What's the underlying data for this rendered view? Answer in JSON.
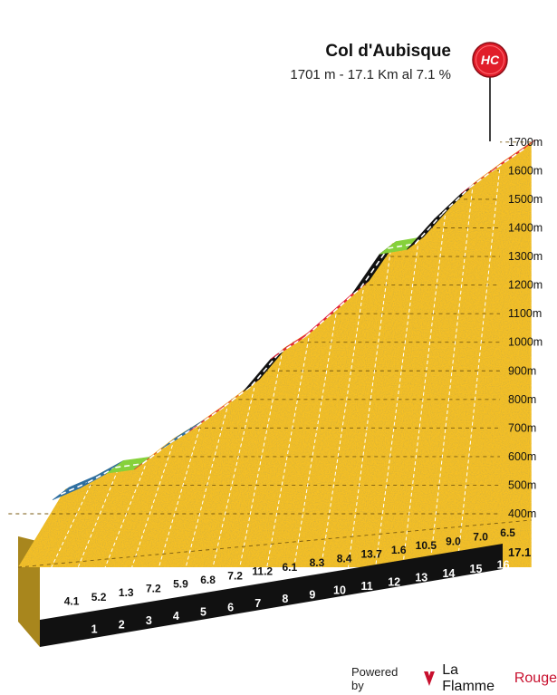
{
  "header": {
    "title": "Col d'Aubisque",
    "subtitle": "1701 m - 17.1 Km al 7.1 %",
    "badge": "HC"
  },
  "footer": {
    "powered_by": "Powered by",
    "brand_part1": "La Flamme",
    "brand_part2": "Rouge"
  },
  "colors": {
    "easy": "#86d13b",
    "moderate": "#2f6fa0",
    "hard": "#e1233a",
    "very_hard": "#111111",
    "profile_fill": "#f5c026",
    "profile_side": "#a8861d",
    "badge": "#e11d2a"
  },
  "chart_data": {
    "type": "area",
    "x_unit": "km",
    "y_unit": "m",
    "y_range": [
      400,
      1700
    ],
    "y_ticks": [
      "400m",
      "500m",
      "600m",
      "700m",
      "800m",
      "900m",
      "1000m",
      "1100m",
      "1200m",
      "1300m",
      "1400m",
      "1500m",
      "1600m",
      "1700m"
    ],
    "total_distance_label": "17.1",
    "km_labels": [
      "1",
      "2",
      "3",
      "4",
      "5",
      "6",
      "7",
      "8",
      "9",
      "10",
      "11",
      "12",
      "13",
      "14",
      "15",
      "16"
    ],
    "start_elevation": 486,
    "summit_elevation": 1701,
    "segments": [
      {
        "km": 1,
        "gradient": 4.1,
        "label": "4.1",
        "color": "moderate"
      },
      {
        "km": 2,
        "gradient": 5.2,
        "label": "5.2",
        "color": "moderate"
      },
      {
        "km": 3,
        "gradient": 1.3,
        "label": "1.3",
        "color": "easy"
      },
      {
        "km": 4,
        "gradient": 7.2,
        "label": "7.2",
        "color": "hard"
      },
      {
        "km": 5,
        "gradient": 5.9,
        "label": "5.9",
        "color": "moderate"
      },
      {
        "km": 6,
        "gradient": 6.8,
        "label": "6.8",
        "color": "hard"
      },
      {
        "km": 7,
        "gradient": 7.2,
        "label": "7.2",
        "color": "hard"
      },
      {
        "km": 8,
        "gradient": 11.2,
        "label": "11.2",
        "color": "very_hard"
      },
      {
        "km": 9,
        "gradient": 6.1,
        "label": "6.1",
        "color": "hard"
      },
      {
        "km": 10,
        "gradient": 8.3,
        "label": "8.3",
        "color": "hard"
      },
      {
        "km": 11,
        "gradient": 8.4,
        "label": "8.4",
        "color": "hard"
      },
      {
        "km": 12,
        "gradient": 13.7,
        "label": "13.7",
        "color": "very_hard"
      },
      {
        "km": 13,
        "gradient": 1.6,
        "label": "1.6",
        "color": "easy"
      },
      {
        "km": 14,
        "gradient": 10.5,
        "label": "10.5",
        "color": "very_hard"
      },
      {
        "km": 15,
        "gradient": 9.0,
        "label": "9.0",
        "color": "very_hard"
      },
      {
        "km": 16,
        "gradient": 7.0,
        "label": "7.0",
        "color": "hard"
      },
      {
        "km": 17.1,
        "gradient": 6.5,
        "label": "6.5",
        "color": "hard"
      }
    ]
  }
}
